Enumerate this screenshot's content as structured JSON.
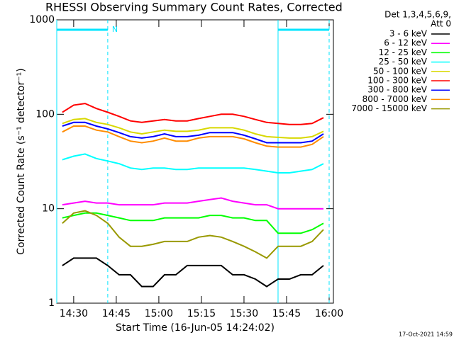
{
  "chart_data": {
    "type": "line",
    "title": "RHESSI Observing Summary Count Rates, Corrected",
    "xlabel": "Start Time (16-Jun-05 14:24:02)",
    "ylabel": "Corrected Count Rate (s⁻¹ detector⁻¹)",
    "annotations": [
      "Det 1,3,4,5,6,9,",
      "Att 0",
      "N",
      "17-Oct-2021 14:59"
    ],
    "log_y": true,
    "xlim": [
      "14:24:02",
      "16:01:30"
    ],
    "xticks": [
      "14:30",
      "14:45",
      "15:00",
      "15:15",
      "15:30",
      "15:45",
      "16:00"
    ],
    "ylim": [
      1,
      1000
    ],
    "yticks": [
      1,
      10,
      100,
      1000
    ],
    "intervals": [
      [
        "14:24:02",
        "14:42"
      ],
      [
        "15:42",
        "16:00"
      ]
    ],
    "interval_color": "#00e5ff",
    "x": [
      "14:26",
      "14:30",
      "14:34",
      "14:38",
      "14:42",
      "14:46",
      "14:50",
      "14:54",
      "14:58",
      "15:02",
      "15:06",
      "15:10",
      "15:14",
      "15:18",
      "15:22",
      "15:26",
      "15:30",
      "15:34",
      "15:38",
      "15:42",
      "15:46",
      "15:50",
      "15:54",
      "15:58"
    ],
    "series": [
      {
        "name": "3 - 6 keV",
        "color": "#000000",
        "values": [
          2.5,
          3,
          3,
          3,
          2.5,
          2,
          2,
          1.5,
          1.5,
          2,
          2,
          2.5,
          2.5,
          2.5,
          2.5,
          2,
          2,
          1.8,
          1.5,
          1.8,
          1.8,
          2,
          2,
          2.5
        ]
      },
      {
        "name": "6 - 12 keV",
        "color": "#ff00ff",
        "values": [
          11,
          11.5,
          12,
          11.5,
          11.5,
          11,
          11,
          11,
          11,
          11.5,
          11.5,
          11.5,
          12,
          12.5,
          13,
          12,
          11.5,
          11,
          11,
          10,
          10,
          10,
          10,
          10
        ]
      },
      {
        "name": "12 - 25 keV",
        "color": "#00ff00",
        "values": [
          8,
          8.5,
          9,
          9,
          8.5,
          8,
          7.5,
          7.5,
          7.5,
          8,
          8,
          8,
          8,
          8.5,
          8.5,
          8,
          8,
          7.5,
          7.5,
          5.5,
          5.5,
          5.5,
          6,
          7
        ]
      },
      {
        "name": "25 - 50 keV",
        "color": "#00ffff",
        "values": [
          33,
          36,
          38,
          34,
          32,
          30,
          27,
          26,
          27,
          27,
          26,
          26,
          27,
          27,
          27,
          27,
          27,
          26,
          25,
          24,
          24,
          25,
          26,
          30
        ]
      },
      {
        "name": "50 - 100 keV",
        "color": "#d8d800",
        "values": [
          80,
          88,
          90,
          82,
          78,
          72,
          65,
          62,
          65,
          68,
          66,
          66,
          68,
          72,
          72,
          72,
          68,
          62,
          58,
          57,
          56,
          56,
          58,
          66
        ]
      },
      {
        "name": "100 - 300 keV",
        "color": "#ff0000",
        "values": [
          105,
          125,
          130,
          115,
          105,
          95,
          85,
          82,
          85,
          88,
          85,
          85,
          90,
          95,
          100,
          100,
          95,
          88,
          82,
          80,
          78,
          78,
          80,
          92
        ]
      },
      {
        "name": "300 - 800 keV",
        "color": "#0000ff",
        "values": [
          75,
          82,
          82,
          75,
          70,
          64,
          58,
          56,
          58,
          62,
          58,
          58,
          60,
          64,
          64,
          64,
          60,
          55,
          50,
          50,
          50,
          50,
          52,
          62
        ]
      },
      {
        "name": "800 - 7000 keV",
        "color": "#ff8c00",
        "values": [
          65,
          75,
          75,
          68,
          65,
          58,
          52,
          50,
          52,
          56,
          52,
          52,
          56,
          58,
          58,
          58,
          55,
          50,
          46,
          45,
          45,
          45,
          48,
          58
        ]
      },
      {
        "name": "7000 - 15000 keV",
        "color": "#999900",
        "values": [
          7,
          9,
          9.5,
          8.5,
          7,
          5,
          4,
          4,
          4.2,
          4.5,
          4.5,
          4.5,
          5,
          5.2,
          5,
          4.5,
          4,
          3.5,
          3,
          4,
          4,
          4,
          4.5,
          6
        ]
      }
    ]
  }
}
